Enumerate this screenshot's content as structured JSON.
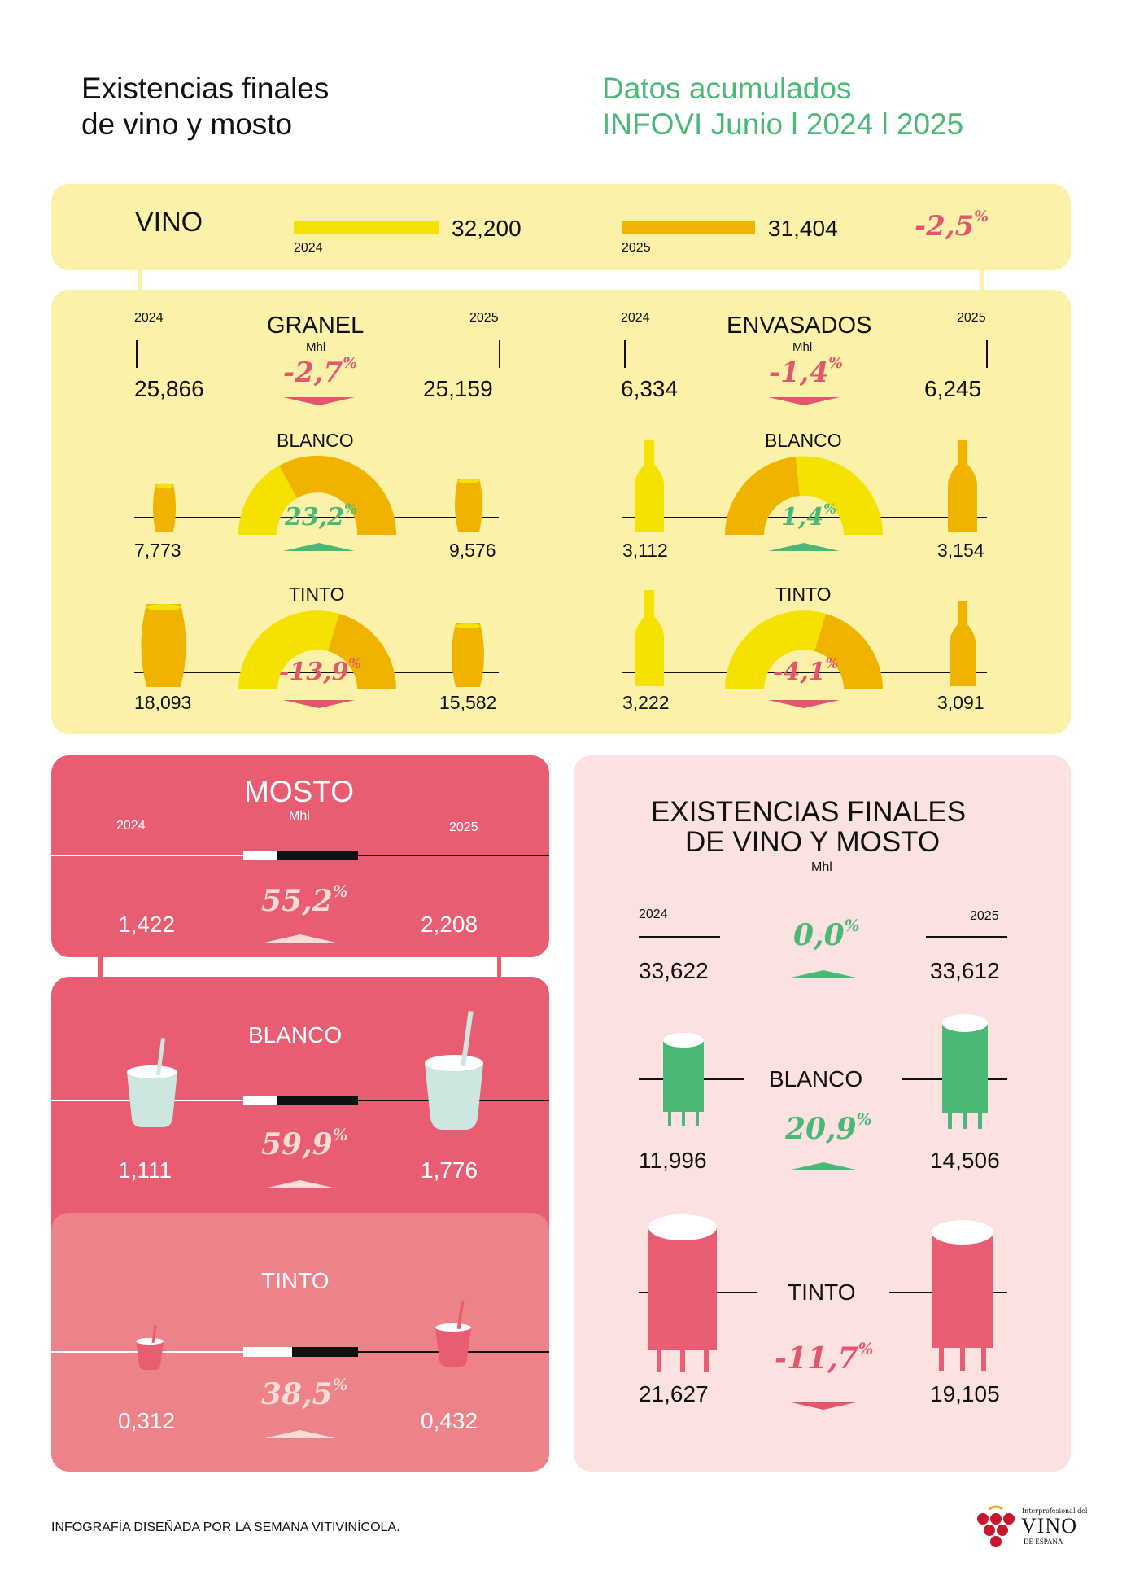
{
  "header": {
    "title_line1": "Existencias finales",
    "title_line2": "de vino y mosto",
    "subtitle_line1": "Datos acumulados",
    "subtitle_line2": "INFOVI Junio l 2024 l 2025"
  },
  "colors": {
    "yellow_panel": "#fcf1a8",
    "yellow_2024": "#f5e203",
    "yellow_2025": "#f0b400",
    "pink_panel": "#e95d73",
    "pink_light_panel": "#ee8289",
    "rose_panel": "#fbe1df",
    "green": "#4cb877",
    "red": "#e2566e",
    "mint": "#cde6e0"
  },
  "vino": {
    "label": "VINO",
    "year_2024": "2024",
    "value_2024": "32,200",
    "year_2025": "2025",
    "value_2025": "31,404",
    "pct": "-2,5",
    "pct_sign": "%"
  },
  "granel": {
    "title": "GRANEL",
    "unit": "Mhl",
    "year_2024": "2024",
    "year_2025": "2025",
    "value_2024": "25,866",
    "value_2025": "25,159",
    "pct": "-2,7",
    "pct_sign": "%",
    "blanco": {
      "label": "BLANCO",
      "value_2024": "7,773",
      "value_2025": "9,576",
      "pct": "23,2",
      "pct_sign": "%"
    },
    "tinto": {
      "label": "TINTO",
      "value_2024": "18,093",
      "value_2025": "15,582",
      "pct": "-13,9",
      "pct_sign": "%"
    }
  },
  "envasados": {
    "title": "ENVASADOS",
    "unit": "Mhl",
    "year_2024": "2024",
    "year_2025": "2025",
    "value_2024": "6,334",
    "value_2025": "6,245",
    "pct": "-1,4",
    "pct_sign": "%",
    "blanco": {
      "label": "BLANCO",
      "value_2024": "3,112",
      "value_2025": "3,154",
      "pct": "1,4",
      "pct_sign": "%"
    },
    "tinto": {
      "label": "TINTO",
      "value_2024": "3,222",
      "value_2025": "3,091",
      "pct": "-4,1",
      "pct_sign": "%"
    }
  },
  "mosto": {
    "title": "MOSTO",
    "unit": "Mhl",
    "year_2024": "2024",
    "year_2025": "2025",
    "value_2024": "1,422",
    "value_2025": "2,208",
    "pct": "55,2",
    "pct_sign": "%",
    "blanco": {
      "label": "BLANCO",
      "value_2024": "1,111",
      "value_2025": "1,776",
      "pct": "59,9",
      "pct_sign": "%"
    },
    "tinto": {
      "label": "TINTO",
      "value_2024": "0,312",
      "value_2025": "0,432",
      "pct": "38,5",
      "pct_sign": "%"
    }
  },
  "total": {
    "title_line1": "EXISTENCIAS FINALES",
    "title_line2": "DE VINO Y MOSTO",
    "unit": "Mhl",
    "year_2024": "2024",
    "year_2025": "2025",
    "value_2024": "33,622",
    "value_2025": "33,612",
    "pct": "0,0",
    "pct_sign": "%",
    "blanco": {
      "label": "BLANCO",
      "value_2024": "11,996",
      "value_2025": "14,506",
      "pct": "20,9",
      "pct_sign": "%"
    },
    "tinto": {
      "label": "TINTO",
      "value_2024": "21,627",
      "value_2025": "19,105",
      "pct": "-11,7",
      "pct_sign": "%"
    }
  },
  "footer": {
    "credit": "INFOGRAFÍA DISEÑADA POR LA SEMANA VITIVINÍCOLA.",
    "logo_small": "Interprofesional del",
    "logo_big": "VINO",
    "logo_sub": "DE ESPAÑA"
  }
}
